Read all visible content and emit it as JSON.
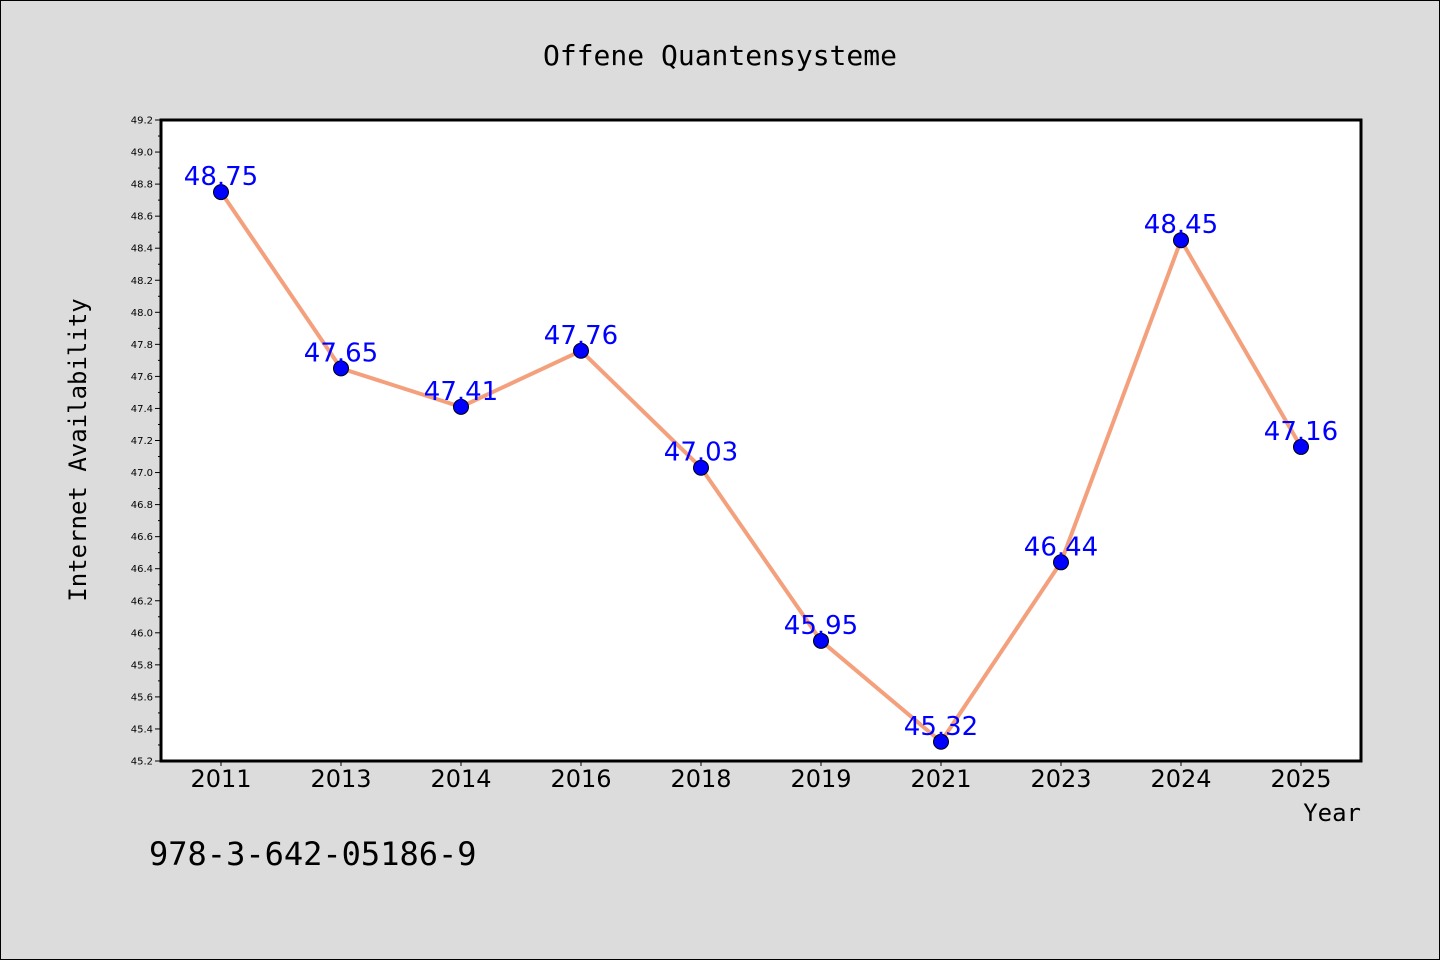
{
  "chart_data": {
    "type": "line",
    "title": "Offene Quantensysteme",
    "xlabel": "Year",
    "ylabel": "Internet Availability",
    "categories": [
      "2011",
      "2013",
      "2014",
      "2016",
      "2018",
      "2019",
      "2021",
      "2023",
      "2024",
      "2025"
    ],
    "values": [
      48.75,
      47.65,
      47.41,
      47.76,
      47.03,
      45.95,
      45.32,
      46.44,
      48.45,
      47.16
    ],
    "data_labels": [
      "48.75",
      "47.65",
      "47.41",
      "47.76",
      "47.03",
      "45.95",
      "45.32",
      "46.44",
      "48.45",
      "47.16"
    ],
    "ylim": [
      45.2,
      49.2
    ],
    "yticks": [
      "45.2",
      "45.4",
      "45.6",
      "45.8",
      "46.0",
      "46.2",
      "46.4",
      "46.6",
      "46.8",
      "47.0",
      "47.2",
      "47.4",
      "47.6",
      "47.8",
      "48.0",
      "48.2",
      "48.4",
      "48.6",
      "48.8",
      "49.0",
      "49.2"
    ],
    "grid": false,
    "line_color": "#f4a07c",
    "marker_color": "#0000ff",
    "label_color": "#0000ff"
  },
  "footer": {
    "isbn": "978-3-642-05186-9"
  }
}
